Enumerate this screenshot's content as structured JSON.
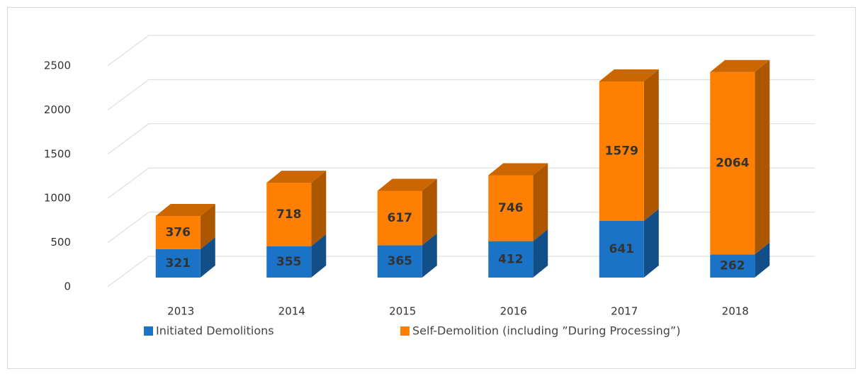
{
  "chart_data": {
    "type": "bar3d_stacked",
    "categories": [
      "2013",
      "2014",
      "2015",
      "2016",
      "2017",
      "2018"
    ],
    "series": [
      {
        "name": "Initiated Demolitions",
        "color": "#1a73c6",
        "values": [
          321,
          355,
          365,
          412,
          641,
          262
        ]
      },
      {
        "name": "Self-Demolition (including ”During Processing”)",
        "color": "#ff7f00",
        "values": [
          376,
          718,
          617,
          746,
          1579,
          2064
        ]
      }
    ],
    "ylim": [
      0,
      2500
    ],
    "yticks": [
      0,
      500,
      1000,
      1500,
      2000,
      2500
    ],
    "grid": true,
    "legend": "bottom"
  }
}
